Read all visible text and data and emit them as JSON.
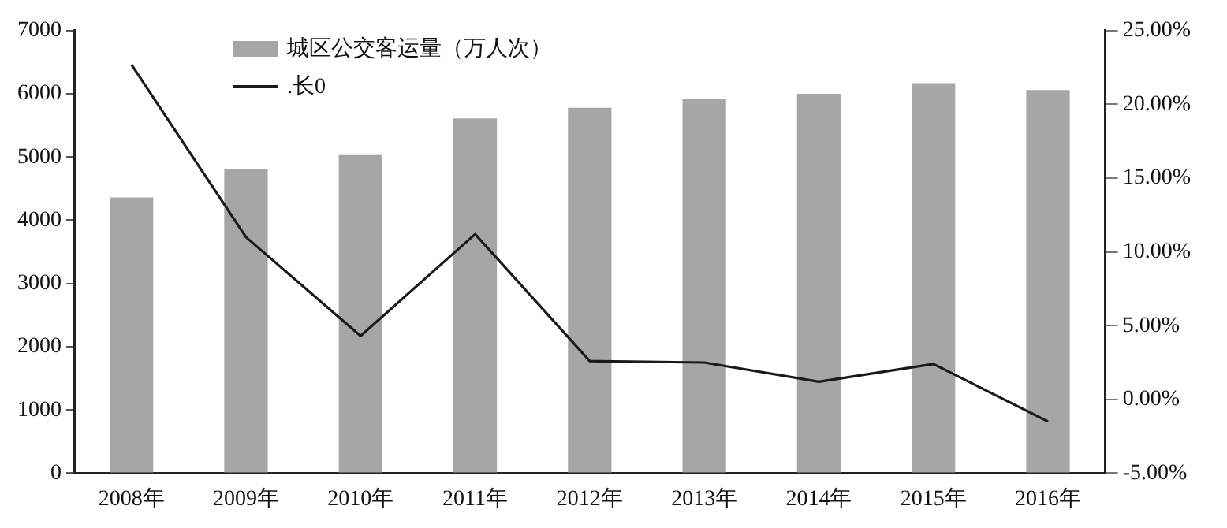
{
  "chart_data": {
    "type": "bar",
    "categories": [
      "2008年",
      "2009年",
      "2010年",
      "2011年",
      "2012年",
      "2013年",
      "2014年",
      "2015年",
      "2016年"
    ],
    "series": [
      {
        "name": "城区公交客运量（万人次）",
        "color": "#a6a6a6",
        "values": [
          4360,
          4810,
          5030,
          5610,
          5780,
          5920,
          6000,
          6170,
          6060
        ]
      },
      {
        "name": ".长0",
        "type": "line",
        "axis": "y2",
        "color": "#1a1a1a",
        "values": [
          22.7,
          11.0,
          4.3,
          11.2,
          2.6,
          2.5,
          1.2,
          2.4,
          -1.5
        ]
      }
    ],
    "ylim": [
      0,
      7000
    ],
    "yticks": [
      0,
      1000,
      2000,
      3000,
      4000,
      5000,
      6000,
      7000
    ],
    "y2lim": [
      -5,
      25
    ],
    "y2ticks": [
      {
        "value": 25,
        "label": "25.00%"
      },
      {
        "value": 20,
        "label": "20.00%"
      },
      {
        "value": 15,
        "label": "15.00%"
      },
      {
        "value": 10,
        "label": "10.00%"
      },
      {
        "value": 5,
        "label": "5.00%"
      },
      {
        "value": 0,
        "label": "0.00%"
      },
      {
        "value": -5,
        "label": "-5.00%"
      }
    ],
    "grid": false,
    "legend": "top left",
    "marker": "none",
    "line_style": "solid"
  }
}
